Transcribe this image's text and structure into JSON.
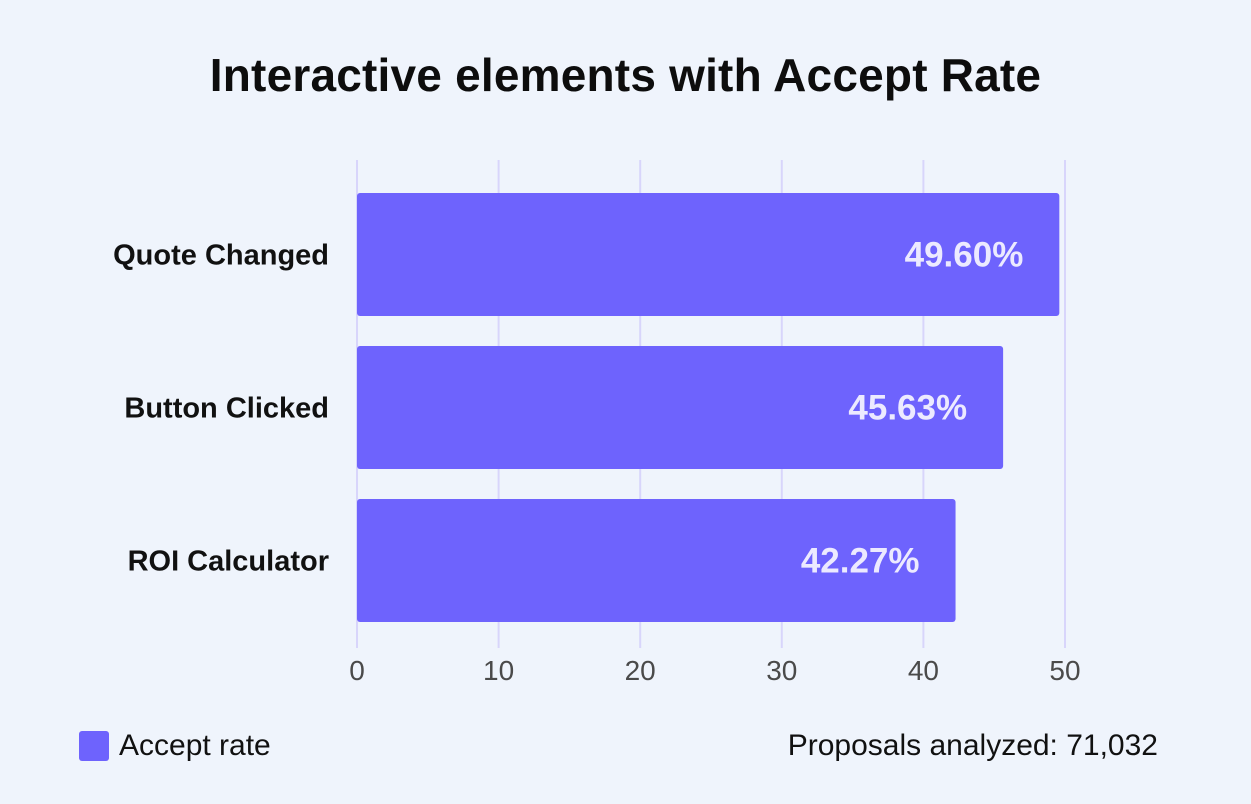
{
  "chart_data": {
    "type": "bar",
    "orientation": "horizontal",
    "title": "Interactive elements with Accept Rate",
    "categories": [
      "Quote Changed",
      "Button Clicked",
      "ROI Calculator"
    ],
    "series": [
      {
        "name": "Accept rate",
        "values": [
          49.6,
          45.63,
          42.27
        ],
        "data_labels": [
          "49.60%",
          "45.63%",
          "42.27%"
        ],
        "color": "#6e63fd"
      }
    ],
    "xlim": [
      0,
      50
    ],
    "xticks": [
      "0",
      "10",
      "20",
      "30",
      "40",
      "50"
    ],
    "grid": true,
    "legend_position": "bottom-left"
  },
  "footnote": "Proposals analyzed: 71,032",
  "colors": {
    "background": "#eff4fc",
    "bar": "#6e63fd",
    "grid": "#d8d5fb",
    "bar_label": "#eceaff",
    "tick_label": "#4a4a4a"
  }
}
